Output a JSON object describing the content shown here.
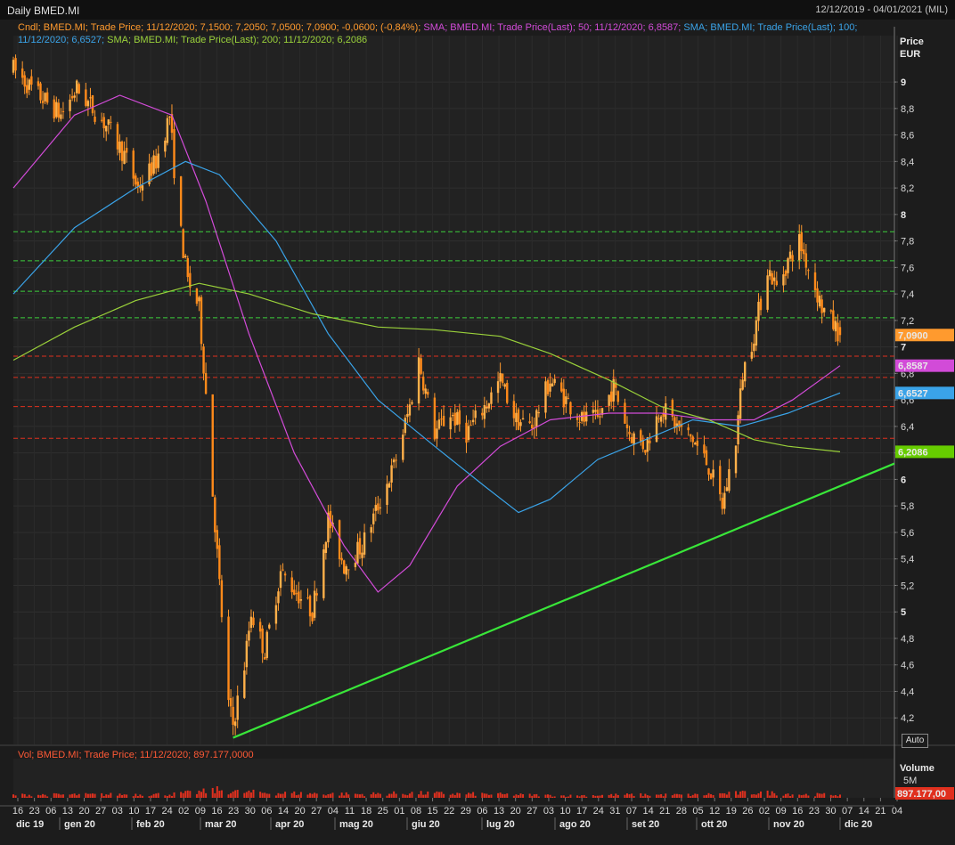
{
  "header": {
    "title": "Daily BMED.MI",
    "date_range": "12/12/2019 - 04/01/2021 (MIL)"
  },
  "legend": {
    "candles": {
      "text": "Cndl; BMED.MI; Trade Price; 11/12/2020; 7,1500; 7,2050; 7,0500; 7,0900; -0,0600; (-0,84%);",
      "color": "#ff9a2e"
    },
    "sma50": {
      "text": "SMA; BMED.MI; Trade Price(Last); 50; 11/12/2020; 6,8587;",
      "color": "#d24bd8"
    },
    "sma100": {
      "text": "SMA; BMED.MI; Trade Price(Last); 100; 11/12/2020; 6,6527;",
      "color": "#3aa3e8"
    },
    "sma200": {
      "text": "SMA; BMED.MI; Trade Price(Last); 200; 11/12/2020; 6,2086",
      "color": "#9ad13a"
    }
  },
  "price_axis": {
    "title": "Price",
    "unit": "EUR",
    "ticks": [
      "9",
      "8,8",
      "8,6",
      "8,4",
      "8,2",
      "8",
      "7,8",
      "7,6",
      "7,4",
      "7,2",
      "7",
      "6,8",
      "6,6",
      "6,4",
      "6,2",
      "6",
      "5,8",
      "5,6",
      "5,4",
      "5,2",
      "5",
      "4,8",
      "4,6",
      "4,4",
      "4,2"
    ],
    "bold_ticks": [
      "9",
      "8",
      "7",
      "6",
      "5"
    ],
    "badges": [
      {
        "label": "7,0900",
        "value": 7.09,
        "color": "#ff9a2e",
        "text_color": "#000000"
      },
      {
        "label": "6,8587",
        "value": 6.8587,
        "color": "#d24bd8",
        "text_color": "#ffffff"
      },
      {
        "label": "6,6527",
        "value": 6.6527,
        "color": "#3aa3e8",
        "text_color": "#ffffff"
      },
      {
        "label": "6,2086",
        "value": 6.2086,
        "color": "#66cc00",
        "text_color": "#ffffff"
      }
    ]
  },
  "volume_panel": {
    "legend": "Vol; BMED.MI; Trade Price; 11/12/2020; 897.177,0000",
    "axis_title": "Volume",
    "tick": "5M",
    "badge": "897.177,00",
    "badge_color": "#e0301e"
  },
  "auto_button": "Auto",
  "x_axis": {
    "day_ticks": [
      "16",
      "23",
      "06",
      "13",
      "20",
      "27",
      "03",
      "10",
      "17",
      "24",
      "02",
      "09",
      "16",
      "23",
      "30",
      "06",
      "14",
      "20",
      "27",
      "04",
      "11",
      "18",
      "25",
      "01",
      "08",
      "15",
      "22",
      "29",
      "06",
      "13",
      "20",
      "27",
      "03",
      "10",
      "17",
      "24",
      "31",
      "07",
      "14",
      "21",
      "28",
      "05",
      "12",
      "19",
      "26",
      "02",
      "09",
      "16",
      "23",
      "30",
      "07",
      "14",
      "21",
      "04"
    ],
    "months": [
      "dic 19",
      "gen 20",
      "feb 20",
      "mar 20",
      "apr 20",
      "mag 20",
      "giu 20",
      "lug 20",
      "ago 20",
      "set 20",
      "ott 20",
      "nov 20",
      "dic 20"
    ]
  },
  "chart_data": {
    "type": "candlestick",
    "symbol": "BMED.MI",
    "currency": "EUR",
    "ylim": [
      4.0,
      9.35
    ],
    "x_range": [
      "2019-12-12",
      "2021-01-04"
    ],
    "last_candle": {
      "date": "11/12/2020",
      "open": 7.15,
      "high": 7.205,
      "low": 7.05,
      "close": 7.09,
      "change": -0.06,
      "change_pct": -0.84
    },
    "close_path": [
      {
        "date": "2019-12-12",
        "close": 9.1
      },
      {
        "date": "2019-12-20",
        "close": 8.95
      },
      {
        "date": "2020-01-02",
        "close": 8.75
      },
      {
        "date": "2020-01-09",
        "close": 8.95
      },
      {
        "date": "2020-01-16",
        "close": 8.8
      },
      {
        "date": "2020-01-23",
        "close": 8.65
      },
      {
        "date": "2020-01-30",
        "close": 8.45
      },
      {
        "date": "2020-02-05",
        "close": 8.2
      },
      {
        "date": "2020-02-13",
        "close": 8.4
      },
      {
        "date": "2020-02-19",
        "close": 8.75
      },
      {
        "date": "2020-02-21",
        "close": 8.35
      },
      {
        "date": "2020-02-24",
        "close": 7.85
      },
      {
        "date": "2020-02-27",
        "close": 7.5
      },
      {
        "date": "2020-03-03",
        "close": 7.3
      },
      {
        "date": "2020-03-06",
        "close": 6.65
      },
      {
        "date": "2020-03-09",
        "close": 5.9
      },
      {
        "date": "2020-03-12",
        "close": 5.2
      },
      {
        "date": "2020-03-16",
        "close": 4.3
      },
      {
        "date": "2020-03-18",
        "close": 4.15
      },
      {
        "date": "2020-03-23",
        "close": 4.6
      },
      {
        "date": "2020-03-26",
        "close": 5.0
      },
      {
        "date": "2020-04-01",
        "close": 4.7
      },
      {
        "date": "2020-04-08",
        "close": 5.3
      },
      {
        "date": "2020-04-15",
        "close": 5.15
      },
      {
        "date": "2020-04-22",
        "close": 5.0
      },
      {
        "date": "2020-04-29",
        "close": 5.7
      },
      {
        "date": "2020-05-06",
        "close": 5.35
      },
      {
        "date": "2020-05-14",
        "close": 5.5
      },
      {
        "date": "2020-05-21",
        "close": 5.8
      },
      {
        "date": "2020-05-28",
        "close": 6.1
      },
      {
        "date": "2020-06-04",
        "close": 6.55
      },
      {
        "date": "2020-06-08",
        "close": 6.9
      },
      {
        "date": "2020-06-15",
        "close": 6.35
      },
      {
        "date": "2020-06-22",
        "close": 6.5
      },
      {
        "date": "2020-06-29",
        "close": 6.35
      },
      {
        "date": "2020-07-07",
        "close": 6.55
      },
      {
        "date": "2020-07-14",
        "close": 6.75
      },
      {
        "date": "2020-07-21",
        "close": 6.45
      },
      {
        "date": "2020-07-28",
        "close": 6.4
      },
      {
        "date": "2020-08-05",
        "close": 6.75
      },
      {
        "date": "2020-08-12",
        "close": 6.6
      },
      {
        "date": "2020-08-19",
        "close": 6.45
      },
      {
        "date": "2020-08-26",
        "close": 6.45
      },
      {
        "date": "2020-09-02",
        "close": 6.7
      },
      {
        "date": "2020-09-09",
        "close": 6.35
      },
      {
        "date": "2020-09-16",
        "close": 6.25
      },
      {
        "date": "2020-09-23",
        "close": 6.55
      },
      {
        "date": "2020-09-30",
        "close": 6.4
      },
      {
        "date": "2020-10-07",
        "close": 6.3
      },
      {
        "date": "2020-10-14",
        "close": 6.1
      },
      {
        "date": "2020-10-20",
        "close": 5.8
      },
      {
        "date": "2020-10-26",
        "close": 6.3
      },
      {
        "date": "2020-10-29",
        "close": 6.8
      },
      {
        "date": "2020-11-03",
        "close": 7.1
      },
      {
        "date": "2020-11-09",
        "close": 7.6
      },
      {
        "date": "2020-11-13",
        "close": 7.45
      },
      {
        "date": "2020-11-18",
        "close": 7.65
      },
      {
        "date": "2020-11-23",
        "close": 7.8
      },
      {
        "date": "2020-11-27",
        "close": 7.6
      },
      {
        "date": "2020-12-03",
        "close": 7.3
      },
      {
        "date": "2020-12-11",
        "close": 7.09
      }
    ],
    "sma": [
      {
        "period": 50,
        "last": 6.8587,
        "color": "#d24bd8",
        "points": [
          {
            "date": "2019-12-12",
            "value": 8.2
          },
          {
            "date": "2020-01-08",
            "value": 8.75
          },
          {
            "date": "2020-01-28",
            "value": 8.9
          },
          {
            "date": "2020-02-20",
            "value": 8.75
          },
          {
            "date": "2020-03-06",
            "value": 8.1
          },
          {
            "date": "2020-03-25",
            "value": 7.1
          },
          {
            "date": "2020-04-14",
            "value": 6.2
          },
          {
            "date": "2020-05-06",
            "value": 5.5
          },
          {
            "date": "2020-05-21",
            "value": 5.15
          },
          {
            "date": "2020-06-04",
            "value": 5.35
          },
          {
            "date": "2020-06-25",
            "value": 5.95
          },
          {
            "date": "2020-07-14",
            "value": 6.25
          },
          {
            "date": "2020-08-05",
            "value": 6.45
          },
          {
            "date": "2020-08-31",
            "value": 6.5
          },
          {
            "date": "2020-09-23",
            "value": 6.5
          },
          {
            "date": "2020-10-14",
            "value": 6.45
          },
          {
            "date": "2020-11-03",
            "value": 6.45
          },
          {
            "date": "2020-11-20",
            "value": 6.6
          },
          {
            "date": "2020-12-11",
            "value": 6.8587
          }
        ]
      },
      {
        "period": 100,
        "last": 6.6527,
        "color": "#3aa3e8",
        "points": [
          {
            "date": "2019-12-12",
            "value": 7.4
          },
          {
            "date": "2020-01-08",
            "value": 7.9
          },
          {
            "date": "2020-02-04",
            "value": 8.2
          },
          {
            "date": "2020-02-26",
            "value": 8.4
          },
          {
            "date": "2020-03-12",
            "value": 8.3
          },
          {
            "date": "2020-04-06",
            "value": 7.8
          },
          {
            "date": "2020-04-29",
            "value": 7.1
          },
          {
            "date": "2020-05-21",
            "value": 6.6
          },
          {
            "date": "2020-06-15",
            "value": 6.25
          },
          {
            "date": "2020-07-07",
            "value": 5.95
          },
          {
            "date": "2020-07-22",
            "value": 5.75
          },
          {
            "date": "2020-08-05",
            "value": 5.85
          },
          {
            "date": "2020-08-26",
            "value": 6.15
          },
          {
            "date": "2020-09-16",
            "value": 6.3
          },
          {
            "date": "2020-10-07",
            "value": 6.45
          },
          {
            "date": "2020-10-28",
            "value": 6.4
          },
          {
            "date": "2020-11-18",
            "value": 6.5
          },
          {
            "date": "2020-12-11",
            "value": 6.6527
          }
        ]
      },
      {
        "period": 200,
        "last": 6.2086,
        "color": "#9ad13a",
        "points": [
          {
            "date": "2019-12-12",
            "value": 6.9
          },
          {
            "date": "2020-01-08",
            "value": 7.15
          },
          {
            "date": "2020-02-04",
            "value": 7.35
          },
          {
            "date": "2020-03-03",
            "value": 7.48
          },
          {
            "date": "2020-03-25",
            "value": 7.4
          },
          {
            "date": "2020-04-22",
            "value": 7.25
          },
          {
            "date": "2020-05-21",
            "value": 7.15
          },
          {
            "date": "2020-06-15",
            "value": 7.13
          },
          {
            "date": "2020-07-14",
            "value": 7.08
          },
          {
            "date": "2020-08-05",
            "value": 6.95
          },
          {
            "date": "2020-08-31",
            "value": 6.75
          },
          {
            "date": "2020-09-23",
            "value": 6.55
          },
          {
            "date": "2020-10-14",
            "value": 6.45
          },
          {
            "date": "2020-11-03",
            "value": 6.3
          },
          {
            "date": "2020-11-18",
            "value": 6.25
          },
          {
            "date": "2020-12-11",
            "value": 6.2086
          }
        ]
      }
    ],
    "trendline": {
      "color": "#39e639",
      "from": {
        "date": "2020-03-18",
        "value": 4.05
      },
      "to": {
        "date": "2021-01-04",
        "value": 6.12
      }
    },
    "horizontal_levels": [
      {
        "value": 7.87,
        "color": "#3ccf3c"
      },
      {
        "value": 7.65,
        "color": "#3ccf3c"
      },
      {
        "value": 7.42,
        "color": "#3ccf3c"
      },
      {
        "value": 7.22,
        "color": "#3ccf3c"
      },
      {
        "value": 6.93,
        "color": "#e0301e"
      },
      {
        "value": 6.77,
        "color": "#e0301e"
      },
      {
        "value": 6.55,
        "color": "#e0301e"
      },
      {
        "value": 6.31,
        "color": "#e0301e"
      }
    ],
    "volume": {
      "last": 897177,
      "tick_5M": 5000000,
      "profile": [
        {
          "date": "2019-12-12",
          "value": 800000
        },
        {
          "date": "2020-02-20",
          "value": 1000000
        },
        {
          "date": "2020-03-05",
          "value": 1700000
        },
        {
          "date": "2020-03-12",
          "value": 2200000
        },
        {
          "date": "2020-03-20",
          "value": 1600000
        },
        {
          "date": "2020-04-08",
          "value": 1300000
        },
        {
          "date": "2020-05-14",
          "value": 1000000
        },
        {
          "date": "2020-06-05",
          "value": 1300000
        },
        {
          "date": "2020-07-14",
          "value": 950000
        },
        {
          "date": "2020-08-12",
          "value": 600000
        },
        {
          "date": "2020-09-09",
          "value": 850000
        },
        {
          "date": "2020-10-07",
          "value": 800000
        },
        {
          "date": "2020-11-05",
          "value": 1500000
        },
        {
          "date": "2020-11-25",
          "value": 900000
        },
        {
          "date": "2020-12-11",
          "value": 897177
        }
      ]
    }
  }
}
